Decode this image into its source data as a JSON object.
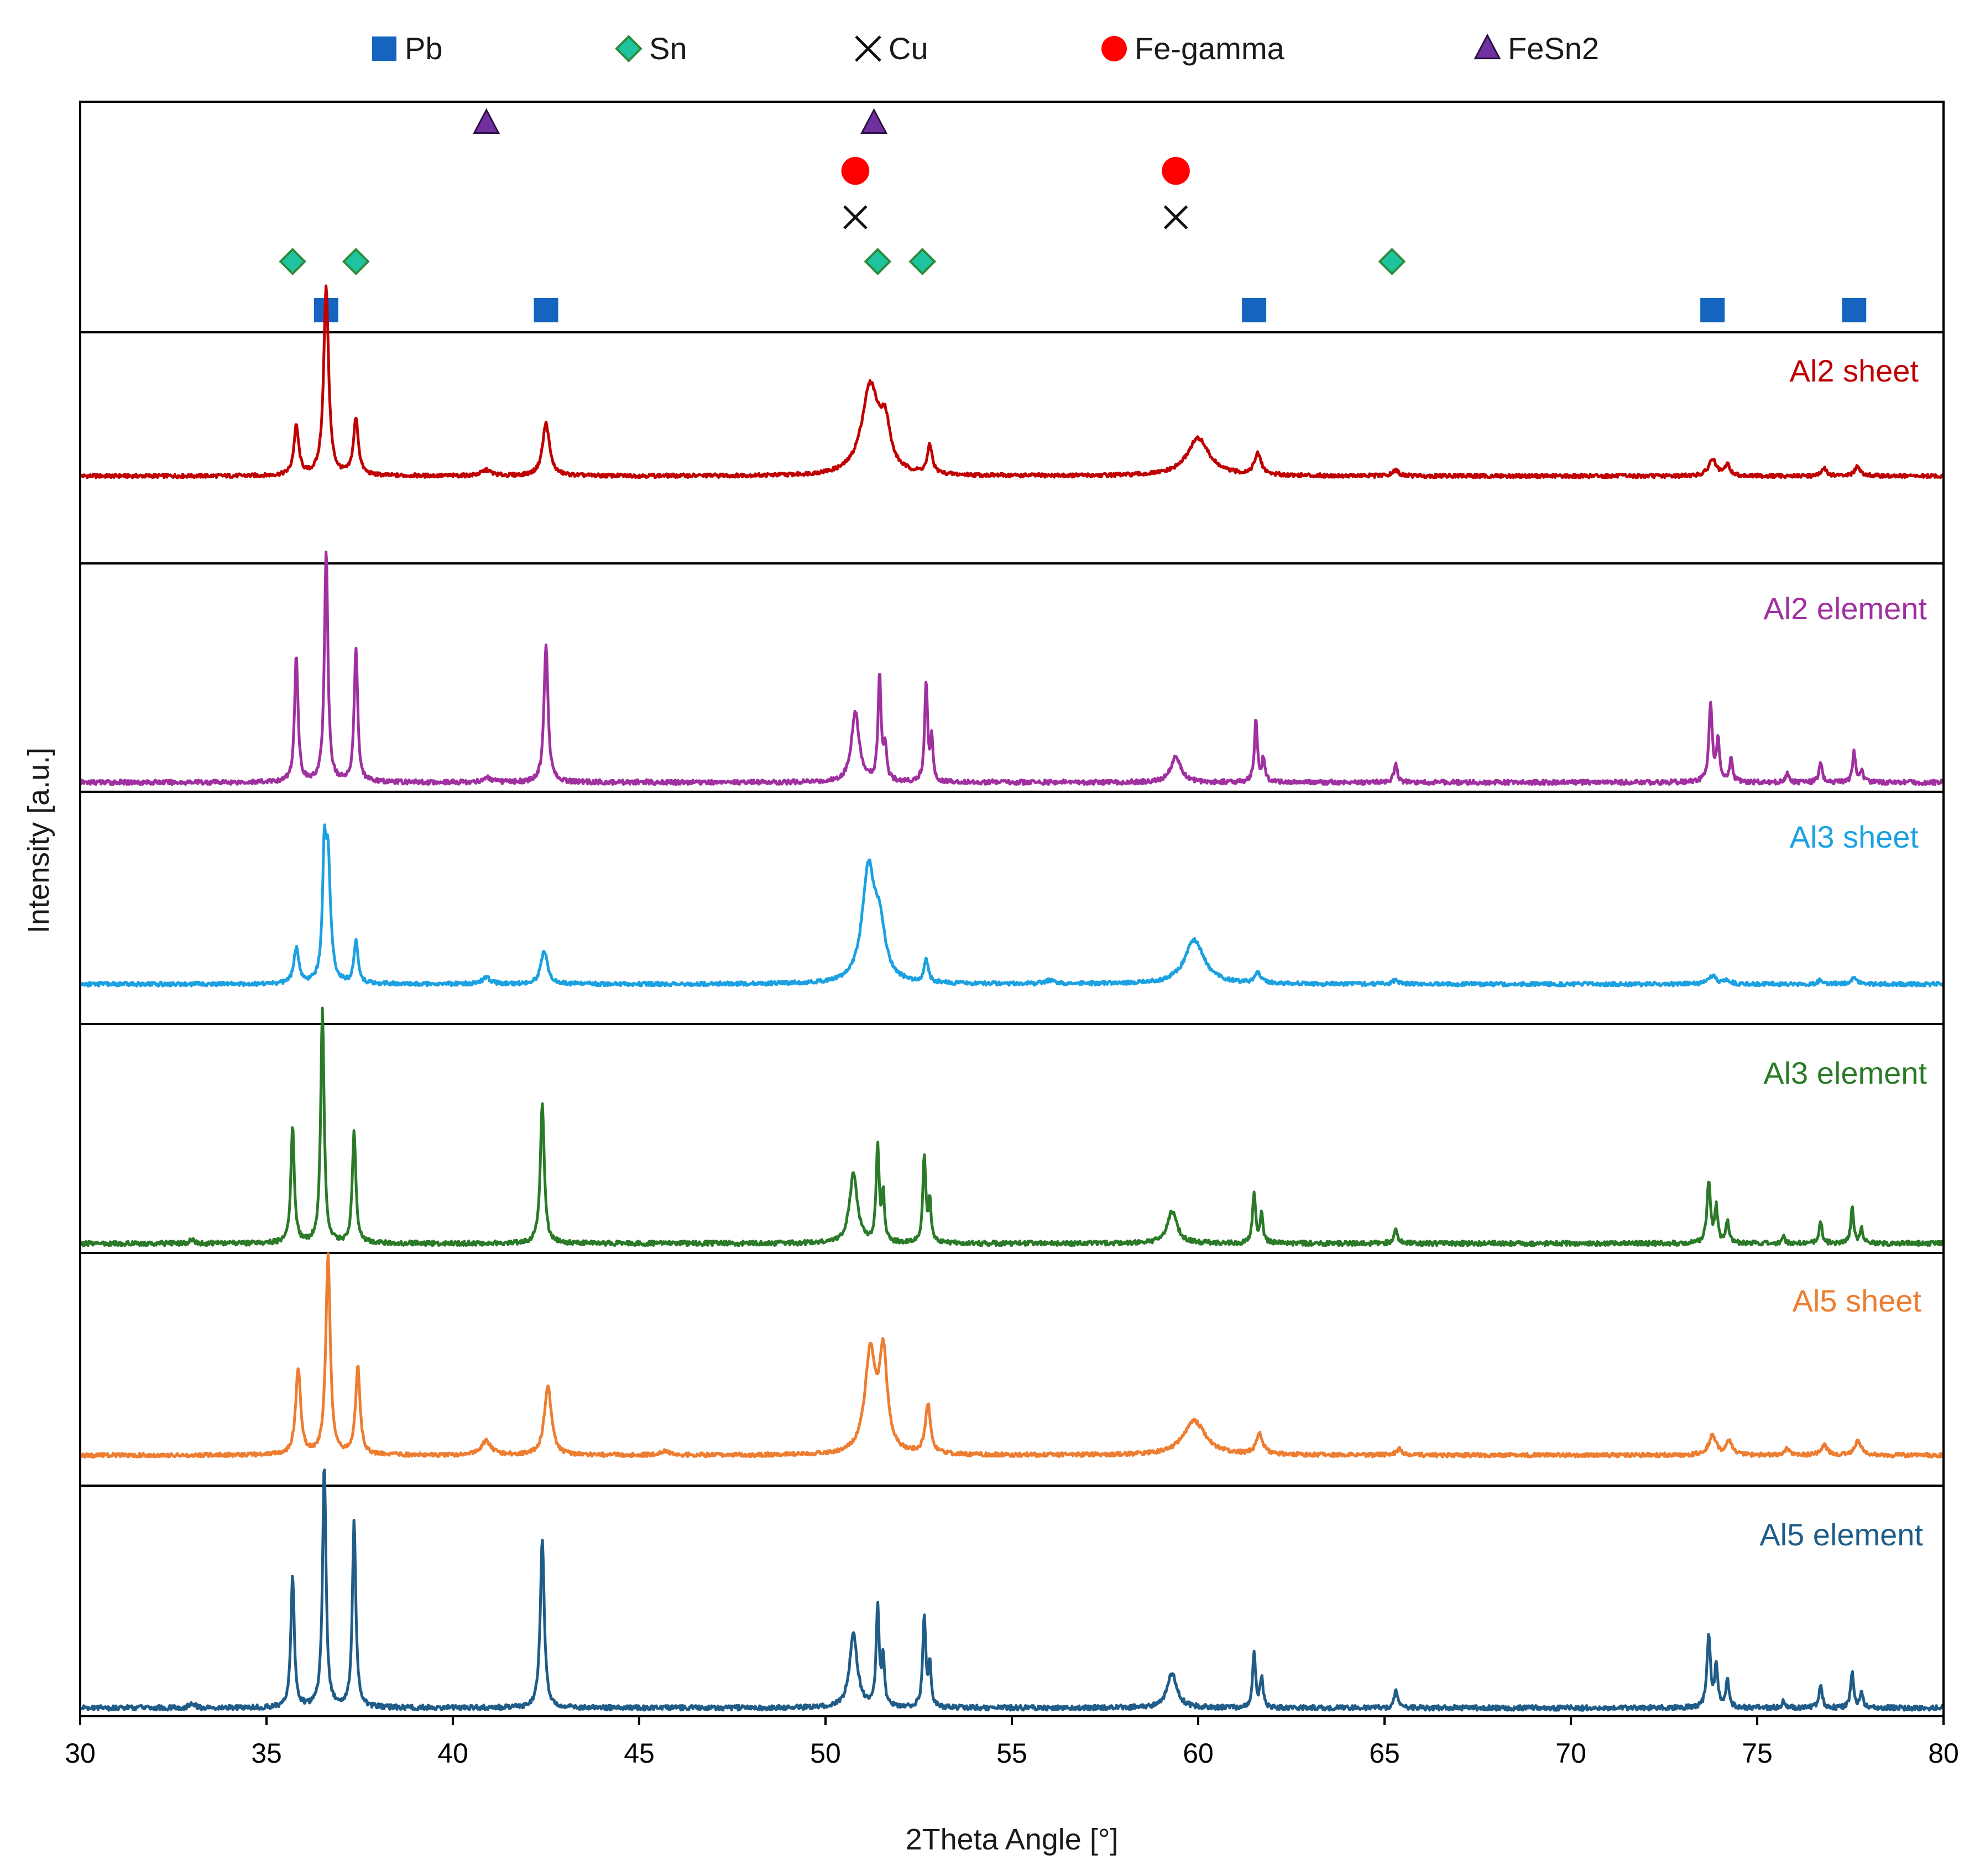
{
  "chart_data": {
    "type": "line",
    "xlabel": "2Theta Angle [°]",
    "ylabel": "Intensity [a.u.]",
    "xlim": [
      30,
      80
    ],
    "xticks": [
      "30",
      "35",
      "40",
      "45",
      "50",
      "55",
      "60",
      "65",
      "70",
      "75",
      "80"
    ],
    "legend": [
      {
        "name": "Pb",
        "marker": "square",
        "color": "#1565c0"
      },
      {
        "name": "Sn",
        "marker": "diamond",
        "color": "#1ec3a0"
      },
      {
        "name": "Cu",
        "marker": "x",
        "color": "#111111"
      },
      {
        "name": "Fe-gamma",
        "marker": "circle",
        "color": "#ff0000"
      },
      {
        "name": "FeSn2",
        "marker": "triangle",
        "color": "#7030a0"
      }
    ],
    "reference_peaks": {
      "FeSn2": [
        40.9,
        51.3
      ],
      "Fe-gamma": [
        50.8,
        59.4
      ],
      "Cu": [
        50.8,
        59.4
      ],
      "Sn": [
        35.7,
        37.4,
        51.4,
        52.6,
        65.2
      ],
      "Pb": [
        36.6,
        42.5,
        61.5,
        73.8,
        77.6
      ]
    },
    "series": [
      {
        "name": "Al2 sheet",
        "color": "#c00000",
        "peaks": [
          [
            35.8,
            0.26,
            0.1
          ],
          [
            36.6,
            1.0,
            0.1
          ],
          [
            37.4,
            0.3,
            0.1
          ],
          [
            40.9,
            0.03,
            0.2
          ],
          [
            42.5,
            0.28,
            0.14
          ],
          [
            51.2,
            0.47,
            0.35
          ],
          [
            51.6,
            0.22,
            0.2
          ],
          [
            52.8,
            0.15,
            0.1
          ],
          [
            60.0,
            0.2,
            0.45
          ],
          [
            61.6,
            0.11,
            0.14
          ],
          [
            65.3,
            0.03,
            0.12
          ],
          [
            73.8,
            0.09,
            0.15
          ],
          [
            74.2,
            0.06,
            0.1
          ],
          [
            76.8,
            0.04,
            0.1
          ],
          [
            77.7,
            0.05,
            0.12
          ]
        ]
      },
      {
        "name": "Al2 element",
        "color": "#a030a0",
        "peaks": [
          [
            35.8,
            0.55,
            0.07
          ],
          [
            36.6,
            1.0,
            0.07
          ],
          [
            37.4,
            0.58,
            0.07
          ],
          [
            40.9,
            0.02,
            0.15
          ],
          [
            42.5,
            0.6,
            0.08
          ],
          [
            50.8,
            0.3,
            0.16
          ],
          [
            51.45,
            0.46,
            0.06
          ],
          [
            51.6,
            0.15,
            0.06
          ],
          [
            52.7,
            0.43,
            0.06
          ],
          [
            52.85,
            0.18,
            0.05
          ],
          [
            59.4,
            0.11,
            0.2
          ],
          [
            61.55,
            0.27,
            0.06
          ],
          [
            61.75,
            0.1,
            0.06
          ],
          [
            65.3,
            0.08,
            0.07
          ],
          [
            73.75,
            0.34,
            0.07
          ],
          [
            73.95,
            0.18,
            0.06
          ],
          [
            74.3,
            0.1,
            0.06
          ],
          [
            75.8,
            0.04,
            0.06
          ],
          [
            76.7,
            0.09,
            0.06
          ],
          [
            77.6,
            0.13,
            0.06
          ],
          [
            77.8,
            0.05,
            0.06
          ]
        ]
      },
      {
        "name": "Al3 sheet",
        "color": "#1ba1e2",
        "peaks": [
          [
            35.8,
            0.18,
            0.1
          ],
          [
            36.55,
            0.55,
            0.07
          ],
          [
            36.65,
            0.6,
            0.1
          ],
          [
            37.4,
            0.21,
            0.08
          ],
          [
            40.9,
            0.03,
            0.18
          ],
          [
            42.45,
            0.17,
            0.13
          ],
          [
            51.15,
            0.56,
            0.25
          ],
          [
            51.45,
            0.25,
            0.22
          ],
          [
            52.7,
            0.12,
            0.08
          ],
          [
            56.0,
            0.015,
            0.2
          ],
          [
            59.9,
            0.22,
            0.4
          ],
          [
            61.6,
            0.05,
            0.12
          ],
          [
            65.3,
            0.02,
            0.12
          ],
          [
            73.8,
            0.04,
            0.15
          ],
          [
            74.2,
            0.02,
            0.12
          ],
          [
            76.7,
            0.02,
            0.1
          ],
          [
            77.6,
            0.03,
            0.15
          ]
        ]
      },
      {
        "name": "Al3 element",
        "color": "#2a7a28",
        "peaks": [
          [
            33.0,
            0.015,
            0.1
          ],
          [
            35.7,
            0.5,
            0.07
          ],
          [
            36.5,
            1.0,
            0.07
          ],
          [
            37.35,
            0.48,
            0.07
          ],
          [
            42.4,
            0.6,
            0.08
          ],
          [
            50.75,
            0.3,
            0.16
          ],
          [
            51.4,
            0.42,
            0.06
          ],
          [
            51.55,
            0.2,
            0.05
          ],
          [
            52.65,
            0.38,
            0.06
          ],
          [
            52.8,
            0.18,
            0.05
          ],
          [
            59.3,
            0.14,
            0.2
          ],
          [
            61.5,
            0.22,
            0.06
          ],
          [
            61.7,
            0.12,
            0.06
          ],
          [
            65.3,
            0.07,
            0.07
          ],
          [
            73.7,
            0.27,
            0.07
          ],
          [
            73.9,
            0.15,
            0.06
          ],
          [
            74.2,
            0.1,
            0.06
          ],
          [
            75.7,
            0.03,
            0.06
          ],
          [
            76.7,
            0.1,
            0.06
          ],
          [
            77.55,
            0.15,
            0.06
          ],
          [
            77.8,
            0.06,
            0.06
          ]
        ]
      },
      {
        "name": "Al5 sheet",
        "color": "#ed7d31",
        "peaks": [
          [
            35.85,
            0.43,
            0.1
          ],
          [
            36.65,
            1.0,
            0.09
          ],
          [
            37.45,
            0.44,
            0.09
          ],
          [
            40.9,
            0.07,
            0.2
          ],
          [
            42.55,
            0.35,
            0.14
          ],
          [
            45.7,
            0.02,
            0.2
          ],
          [
            51.2,
            0.5,
            0.22
          ],
          [
            51.55,
            0.48,
            0.16
          ],
          [
            52.75,
            0.25,
            0.11
          ],
          [
            59.9,
            0.17,
            0.45
          ],
          [
            61.65,
            0.1,
            0.14
          ],
          [
            65.4,
            0.03,
            0.12
          ],
          [
            73.8,
            0.1,
            0.15
          ],
          [
            74.25,
            0.07,
            0.12
          ],
          [
            75.8,
            0.03,
            0.12
          ],
          [
            76.8,
            0.05,
            0.12
          ],
          [
            77.7,
            0.07,
            0.14
          ]
        ]
      },
      {
        "name": "Al5 element",
        "color": "#1f5c88",
        "peaks": [
          [
            33.0,
            0.02,
            0.1
          ],
          [
            35.7,
            0.54,
            0.07
          ],
          [
            36.55,
            1.0,
            0.07
          ],
          [
            37.35,
            0.76,
            0.07
          ],
          [
            42.4,
            0.7,
            0.08
          ],
          [
            50.75,
            0.3,
            0.16
          ],
          [
            51.4,
            0.42,
            0.06
          ],
          [
            51.55,
            0.2,
            0.05
          ],
          [
            52.65,
            0.38,
            0.06
          ],
          [
            52.8,
            0.18,
            0.05
          ],
          [
            59.3,
            0.14,
            0.2
          ],
          [
            61.5,
            0.22,
            0.06
          ],
          [
            61.7,
            0.12,
            0.06
          ],
          [
            65.3,
            0.07,
            0.07
          ],
          [
            73.7,
            0.3,
            0.07
          ],
          [
            73.9,
            0.17,
            0.06
          ],
          [
            74.2,
            0.12,
            0.06
          ],
          [
            75.7,
            0.03,
            0.06
          ],
          [
            76.7,
            0.1,
            0.06
          ],
          [
            77.55,
            0.15,
            0.06
          ],
          [
            77.8,
            0.06,
            0.06
          ]
        ]
      }
    ]
  }
}
